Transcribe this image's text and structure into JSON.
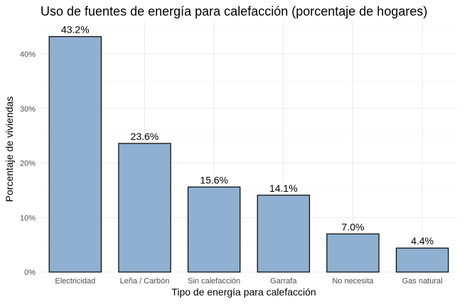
{
  "chart_data": {
    "type": "bar",
    "title": "Uso de fuentes de energía para calefacción (porcentaje de hogares)",
    "xlabel": "Tipo de energía para calefacción",
    "ylabel": "Porcentaje de viviendas",
    "categories": [
      "Electricidad",
      "Leña / Carbón",
      "Sin calefacción",
      "Garrafa",
      "No necesita",
      "Gas natural"
    ],
    "values": [
      43.2,
      23.6,
      15.6,
      14.1,
      7.0,
      4.4
    ],
    "data_labels": [
      "43.2%",
      "23.6%",
      "15.6%",
      "14.1%",
      "7.0%",
      "4.4%"
    ],
    "ylim": [
      0,
      46
    ],
    "yticks": [
      0,
      10,
      20,
      30,
      40
    ],
    "ytick_labels": [
      "0%",
      "10%",
      "20%",
      "30%",
      "40%"
    ],
    "bar_color": "#8fb0d0",
    "grid": true,
    "legend": "none"
  }
}
